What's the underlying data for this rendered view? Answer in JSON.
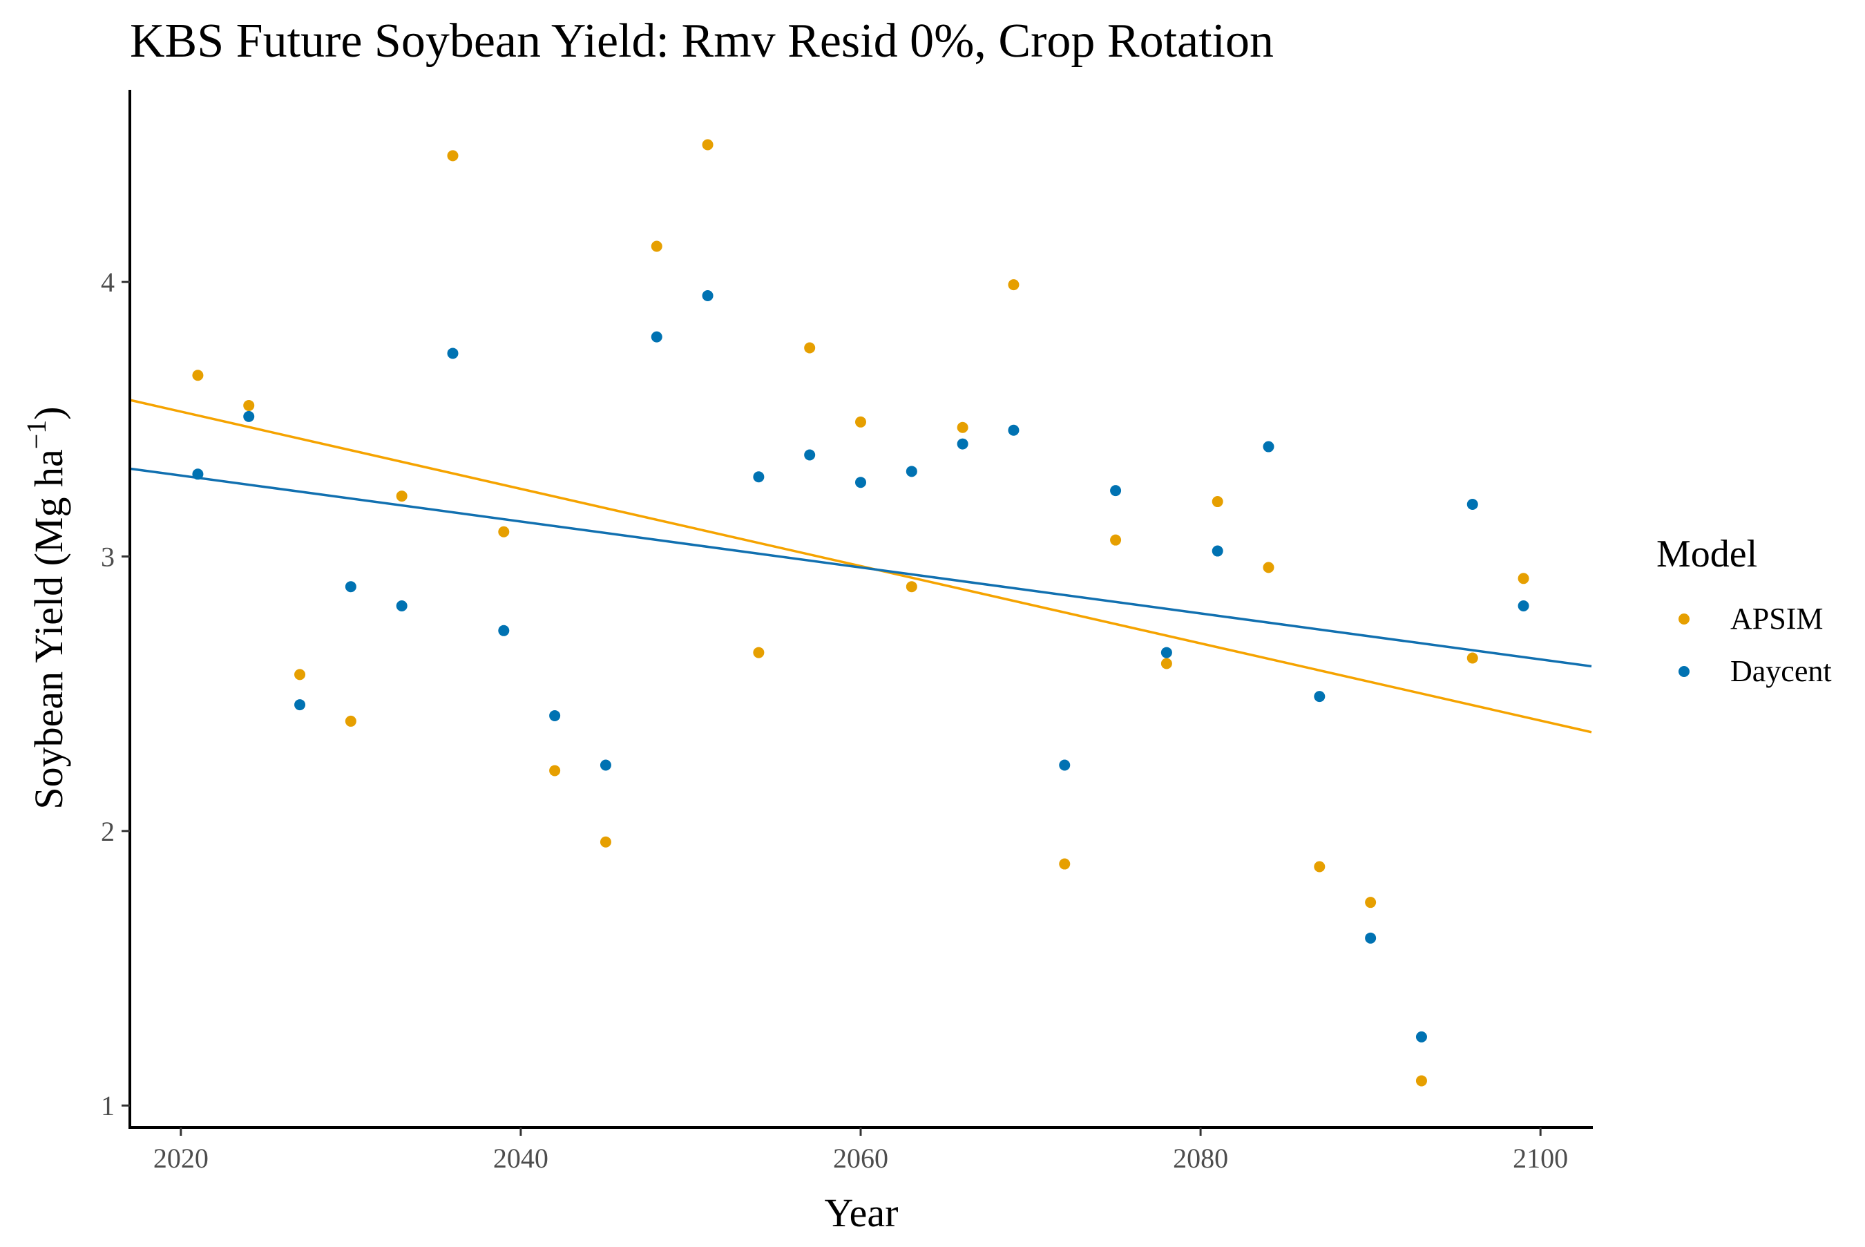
{
  "chart_data": {
    "type": "scatter",
    "title": "KBS Future Soybean Yield:  Rmv Resid 0%, Crop Rotation",
    "xlabel": "Year",
    "ylabel_main": "Soybean Yield (Mg ha",
    "ylabel_sup": "−1",
    "ylabel_close": ")",
    "xlim": [
      2017,
      2103
    ],
    "ylim": [
      0.92,
      4.7
    ],
    "x_ticks": [
      2020,
      2040,
      2060,
      2080,
      2100
    ],
    "y_ticks": [
      1,
      2,
      3,
      4
    ],
    "grid": false,
    "legend": {
      "title": "Model",
      "position": "right",
      "entries": [
        "APSIM",
        "Daycent"
      ]
    },
    "series": [
      {
        "name": "APSIM",
        "color": "#E69F00",
        "line_color": "#F5A300",
        "trend": {
          "x": [
            2017,
            2103
          ],
          "y": [
            3.57,
            2.36
          ]
        },
        "points": [
          [
            2021,
            3.66
          ],
          [
            2024,
            3.55
          ],
          [
            2027,
            2.57
          ],
          [
            2030,
            2.4
          ],
          [
            2033,
            3.22
          ],
          [
            2036,
            4.46
          ],
          [
            2039,
            3.09
          ],
          [
            2042,
            2.22
          ],
          [
            2045,
            1.96
          ],
          [
            2048,
            4.13
          ],
          [
            2051,
            4.5
          ],
          [
            2054,
            2.65
          ],
          [
            2057,
            3.76
          ],
          [
            2060,
            3.49
          ],
          [
            2063,
            2.89
          ],
          [
            2066,
            3.47
          ],
          [
            2069,
            3.99
          ],
          [
            2072,
            1.88
          ],
          [
            2075,
            3.06
          ],
          [
            2078,
            2.61
          ],
          [
            2081,
            3.2
          ],
          [
            2084,
            2.96
          ],
          [
            2087,
            1.87
          ],
          [
            2090,
            1.74
          ],
          [
            2093,
            1.09
          ],
          [
            2096,
            2.63
          ],
          [
            2099,
            2.92
          ]
        ]
      },
      {
        "name": "Daycent",
        "color": "#0072B2",
        "line_color": "#1170B0",
        "trend": {
          "x": [
            2017,
            2103
          ],
          "y": [
            3.32,
            2.6
          ]
        },
        "points": [
          [
            2021,
            3.3
          ],
          [
            2024,
            3.51
          ],
          [
            2027,
            2.46
          ],
          [
            2030,
            2.89
          ],
          [
            2033,
            2.82
          ],
          [
            2036,
            3.74
          ],
          [
            2039,
            2.73
          ],
          [
            2042,
            2.42
          ],
          [
            2045,
            2.24
          ],
          [
            2048,
            3.8
          ],
          [
            2051,
            3.95
          ],
          [
            2054,
            3.29
          ],
          [
            2057,
            3.37
          ],
          [
            2060,
            3.27
          ],
          [
            2063,
            3.31
          ],
          [
            2066,
            3.41
          ],
          [
            2069,
            3.46
          ],
          [
            2072,
            2.24
          ],
          [
            2075,
            3.24
          ],
          [
            2078,
            2.65
          ],
          [
            2081,
            3.02
          ],
          [
            2084,
            3.4
          ],
          [
            2087,
            2.49
          ],
          [
            2090,
            1.61
          ],
          [
            2093,
            1.25
          ],
          [
            2096,
            3.19
          ],
          [
            2099,
            2.82
          ]
        ]
      }
    ]
  }
}
